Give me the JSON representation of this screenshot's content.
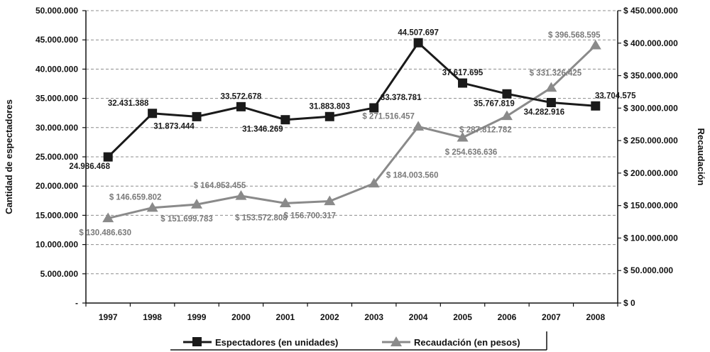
{
  "chart_data": {
    "type": "line",
    "categories": [
      "1997",
      "1998",
      "1999",
      "2000",
      "2001",
      "2002",
      "2003",
      "2004",
      "2005",
      "2006",
      "2007",
      "2008"
    ],
    "y_left": {
      "label": "Cantidad de espectadores",
      "range": [
        0,
        50000000
      ],
      "ticks": [
        "-",
        "5.000.000",
        "10.000.000",
        "15.000.000",
        "20.000.000",
        "25.000.000",
        "30.000.000",
        "35.000.000",
        "40.000.000",
        "45.000.000",
        "50.000.000"
      ]
    },
    "y_right": {
      "label": "Recaudación",
      "range": [
        0,
        450000000
      ],
      "ticks": [
        "$ 0",
        "$ 50.000.000",
        "$ 100.000.000",
        "$ 150.000.000",
        "$ 200.000.000",
        "$ 250.000.000",
        "$ 300.000.000",
        "$ 350.000.000",
        "$ 400.000.000",
        "$ 450.000.000"
      ]
    },
    "series": [
      {
        "name": "Espectadores (en unidades)",
        "axis": "left",
        "color": "#1a1a1a",
        "marker": "square",
        "values": [
          24986468,
          32431388,
          31873444,
          33572678,
          31346269,
          31883803,
          33378781,
          44507697,
          37617695,
          35767819,
          34282916,
          33704575
        ],
        "labels": [
          "24.986.468",
          "32.431.388",
          "31.873.444",
          "33.572.678",
          "31.346.269",
          "31.883.803",
          "33.378.781",
          "44.507.697",
          "37.617.695",
          "35.767.819",
          "34.282.916",
          "33.704.575"
        ]
      },
      {
        "name": "Recaudación (en pesos)",
        "axis": "right",
        "color": "#8a8a8a",
        "marker": "triangle",
        "values": [
          130486630,
          146659802,
          151699783,
          164953455,
          153572808,
          156700317,
          184003560,
          271516457,
          254636636,
          287812782,
          331326425,
          396568595
        ],
        "labels": [
          "$ 130.486.630",
          "$ 146.659.802",
          "$ 151.699.783",
          "$ 164.953.455",
          "$ 153.572.808",
          "$ 156.700.317",
          "$ 184.003.560",
          "$ 271.516.457",
          "$ 254.636.636",
          "$ 287.812.782",
          "$ 331.326.425",
          "$ 396.568.595"
        ]
      }
    ],
    "grid": true,
    "legend": "bottom-center"
  }
}
